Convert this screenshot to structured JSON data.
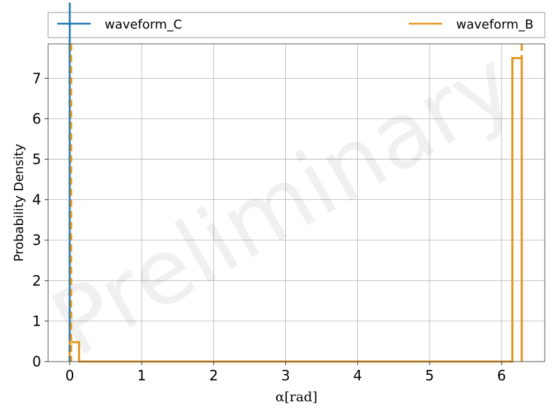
{
  "chart_data": {
    "type": "histogram",
    "title": "",
    "xlabel": "α[rad]",
    "ylabel": "Probability Density",
    "xlim": [
      -0.3,
      6.6
    ],
    "ylim": [
      0,
      7.85
    ],
    "xticks": [
      0,
      1,
      2,
      3,
      4,
      5,
      6
    ],
    "yticks": [
      0,
      1,
      2,
      3,
      4,
      5,
      6,
      7
    ],
    "grid": true,
    "legend": {
      "placement": "top, outside plot, two columns"
    },
    "watermark": "Preliminary",
    "series": [
      {
        "name": "waveform_C",
        "color": "#1f77b4",
        "bin_edges": [
          0.0,
          0.0012
        ],
        "density": [
          800
        ],
        "marker_x": 0.0
      },
      {
        "name": "waveform_B",
        "color": "#e0961f",
        "bin_edges": [
          0.0,
          0.13,
          0.26,
          6.15,
          6.28
        ],
        "density": [
          0.48,
          0.0,
          0.0,
          7.5
        ],
        "marker_x": 0.02,
        "marker_x2": 6.28
      }
    ]
  }
}
